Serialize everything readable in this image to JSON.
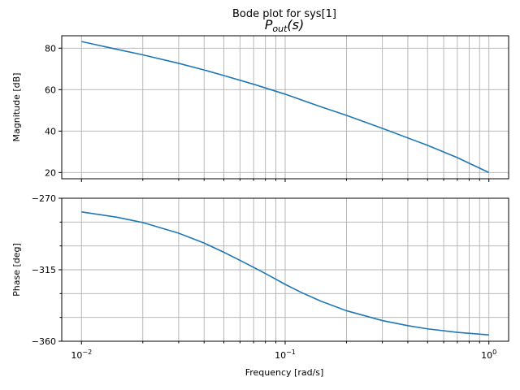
{
  "title": "Bode plot for sys[1]",
  "subtitle_main": "P",
  "subtitle_sub": "out",
  "subtitle_rest": "(s)",
  "colors": {
    "curve": "#1f77b4"
  },
  "chart_data": [
    {
      "type": "line",
      "name": "magnitude",
      "xscale": "log",
      "xlim": [
        0.008,
        1.25
      ],
      "ylim": [
        17,
        86
      ],
      "ylabel": "Magnitude [dB]",
      "yticks": [
        20,
        40,
        60,
        80
      ],
      "ytick_labels": [
        "20",
        "40",
        "60",
        "80"
      ],
      "grid": true,
      "series": [
        {
          "x": [
            0.01,
            0.015,
            0.02,
            0.03,
            0.04,
            0.05,
            0.07,
            0.1,
            0.15,
            0.2,
            0.3,
            0.5,
            0.7,
            1.0
          ],
          "y": [
            83.2,
            79.4,
            76.8,
            72.7,
            69.5,
            66.8,
            62.6,
            57.8,
            51.7,
            47.6,
            41.3,
            33.1,
            27.2,
            20.0
          ]
        }
      ]
    },
    {
      "type": "line",
      "name": "phase",
      "xscale": "log",
      "xlim": [
        0.008,
        1.25
      ],
      "ylim": [
        -360,
        -270
      ],
      "xlabel": "Frequency [rad/s]",
      "ylabel": "Phase [deg]",
      "yticks": [
        -360,
        -315,
        -270
      ],
      "ytick_labels": [
        "−360",
        "−315",
        "−270"
      ],
      "xticks": [
        0.01,
        0.1,
        1
      ],
      "xtick_labels": [
        {
          "base": "10",
          "exp": "−2"
        },
        {
          "base": "10",
          "exp": "−1"
        },
        {
          "base": "10",
          "exp": "0"
        }
      ],
      "grid": true,
      "series": [
        {
          "x": [
            0.01,
            0.015,
            0.02,
            0.03,
            0.04,
            0.05,
            0.06,
            0.07,
            0.08,
            0.1,
            0.12,
            0.15,
            0.2,
            0.3,
            0.4,
            0.5,
            0.7,
            1.0
          ],
          "y": [
            -278.6,
            -282.0,
            -285.3,
            -292.0,
            -298.2,
            -304.0,
            -309.1,
            -313.5,
            -317.4,
            -324.2,
            -329.3,
            -334.8,
            -340.8,
            -347.0,
            -350.2,
            -352.2,
            -354.4,
            -356.0
          ]
        }
      ]
    }
  ]
}
